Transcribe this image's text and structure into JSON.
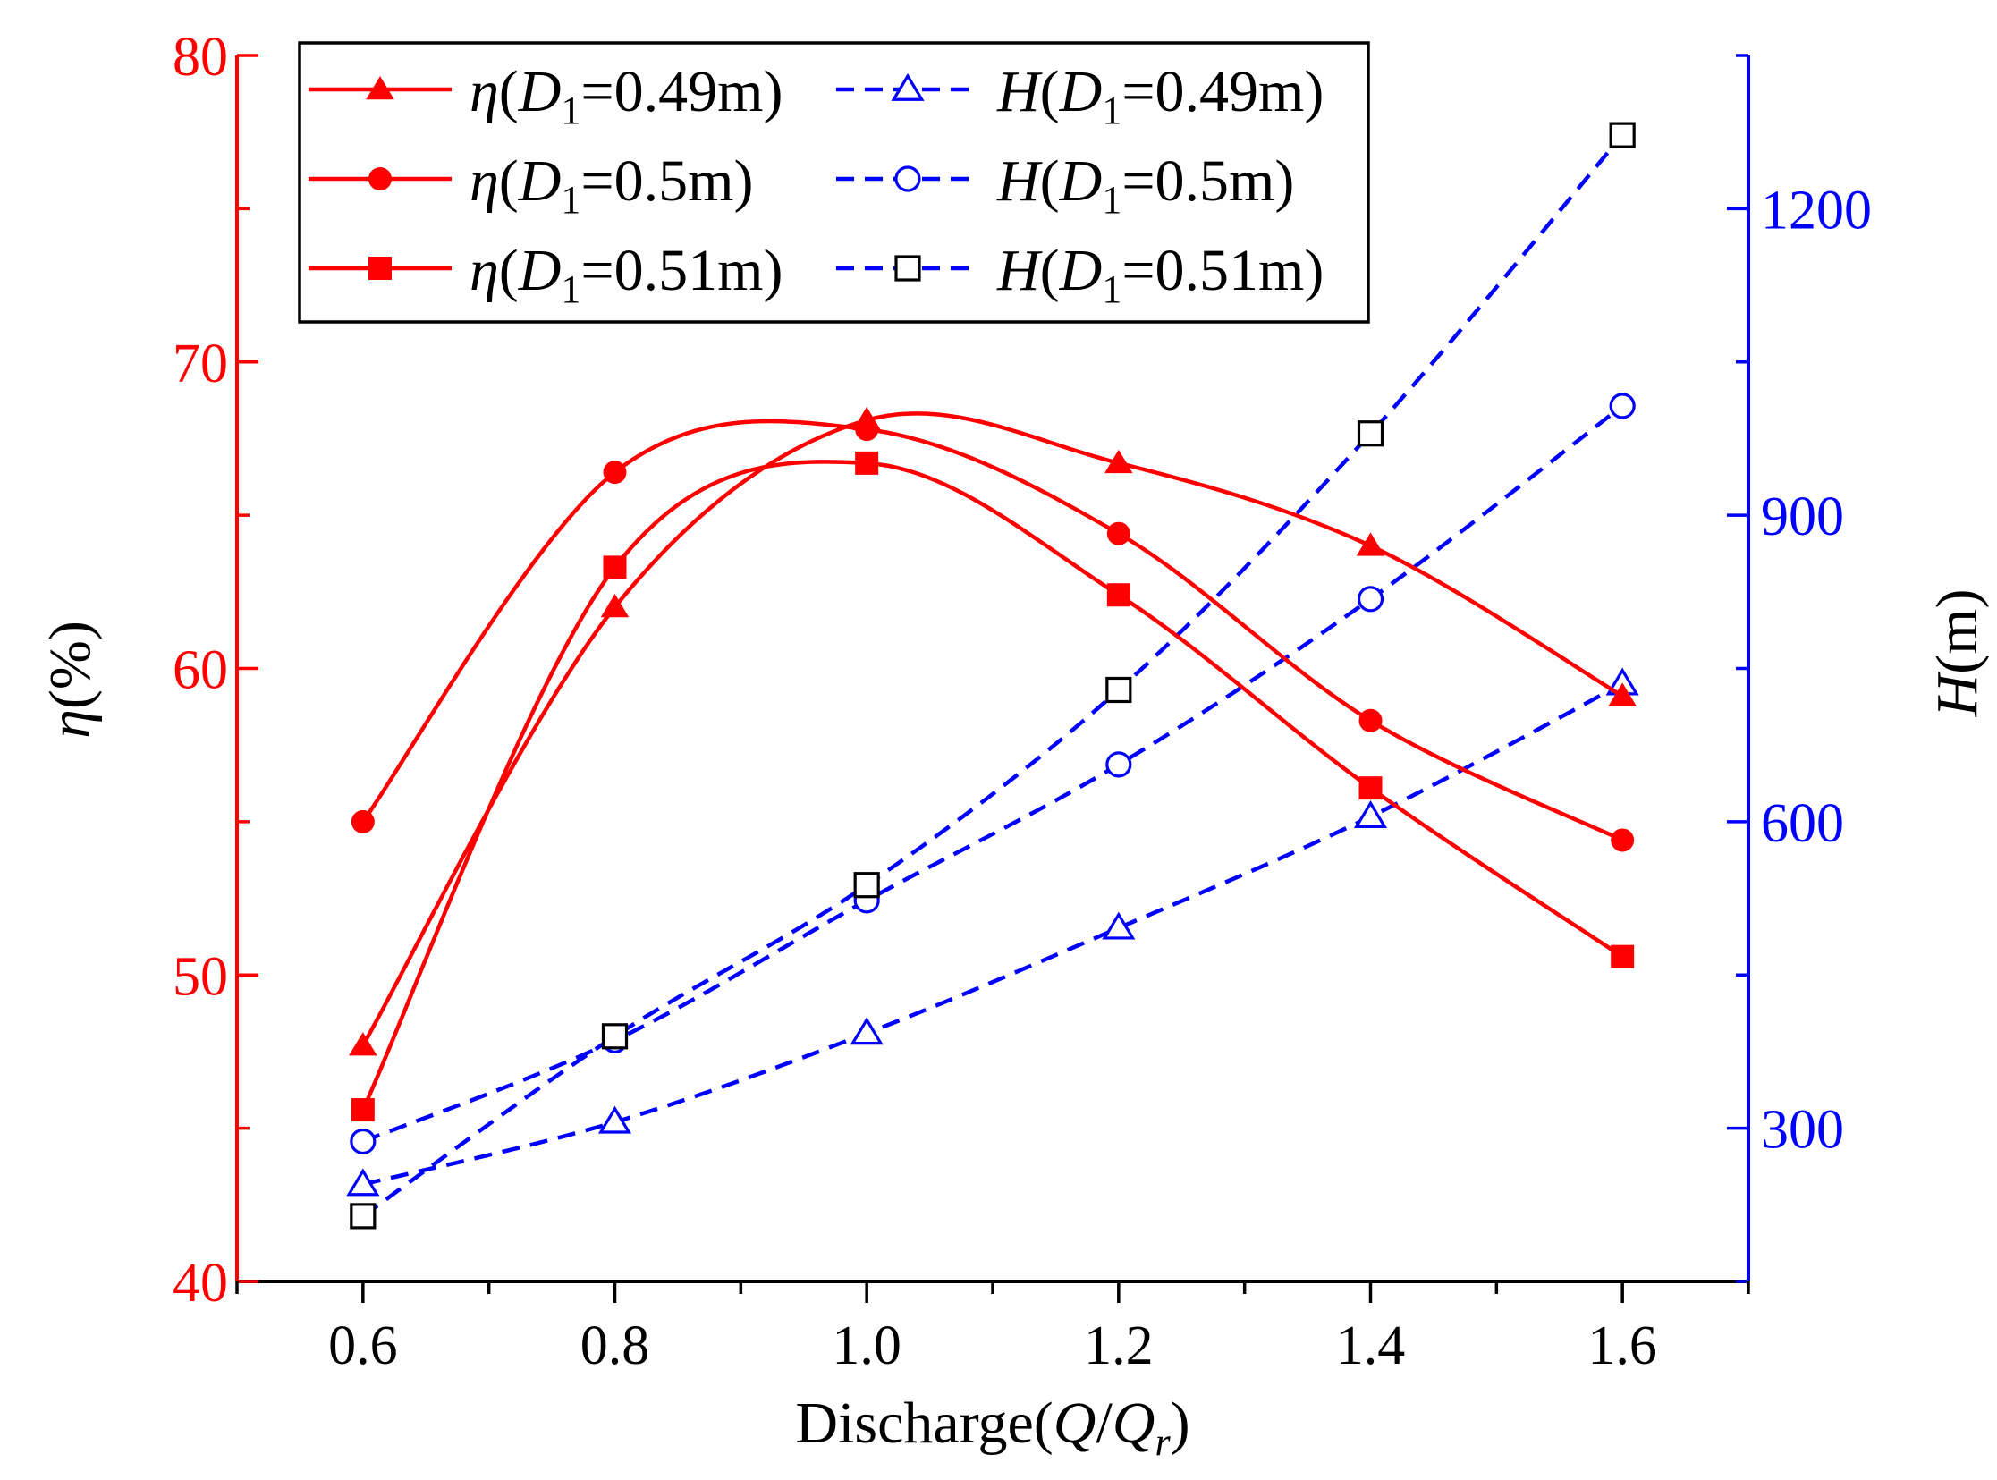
{
  "chart_data": {
    "type": "line",
    "title": "",
    "x": [
      0.6,
      0.8,
      1.0,
      1.2,
      1.4,
      1.6
    ],
    "xlim": [
      0.5,
      1.7
    ],
    "xticks": [
      0.6,
      0.8,
      1.0,
      1.2,
      1.4,
      1.6
    ],
    "xtick_labels": [
      "0.6",
      "0.8",
      "1.0",
      "1.2",
      "1.4",
      "1.6"
    ],
    "xlabel": {
      "prefix": "Discharge(",
      "q": "Q",
      "slash": "/",
      "qr": "Q",
      "sub": "r",
      "suffix": ")"
    },
    "y_left": {
      "label": {
        "sym": "η",
        "unit": "(%)"
      },
      "lim": [
        40,
        80
      ],
      "ticks": [
        40,
        50,
        60,
        70,
        80
      ],
      "tick_labels": [
        "40",
        "50",
        "60",
        "70",
        "80"
      ],
      "color": "#ff0000"
    },
    "y_right": {
      "label": {
        "sym": "H",
        "unit": "(m)"
      },
      "lim": [
        150,
        1350
      ],
      "ticks": [
        300,
        600,
        900,
        1200
      ],
      "tick_labels": [
        "300",
        "600",
        "900",
        "1200"
      ],
      "color": "#0000ff"
    },
    "series": [
      {
        "name": "η(D1=0.49m)",
        "sym": "η",
        "d": "D",
        "dsub": "1",
        "val": "=0.49m)",
        "axis": "left",
        "marker": "triangle",
        "filled": true,
        "color": "#ff0000",
        "dash": "solid",
        "values": [
          47.7,
          62.0,
          68.1,
          66.7,
          64.0,
          59.1
        ]
      },
      {
        "name": "H(D1=0.49m)",
        "sym": "H",
        "d": "D",
        "dsub": "1",
        "val": "=0.49m)",
        "axis": "right",
        "marker": "triangle",
        "filled": false,
        "color": "#0000ff",
        "dash": "dashed",
        "values": [
          245,
          306,
          393,
          496,
          605,
          735
        ]
      },
      {
        "name": "η(D1=0.5m)",
        "sym": "η",
        "d": "D",
        "dsub": "1",
        "val": "=0.5m)",
        "axis": "left",
        "marker": "circle",
        "filled": true,
        "color": "#ff0000",
        "dash": "solid",
        "values": [
          55.0,
          66.4,
          67.8,
          64.4,
          58.3,
          54.4
        ]
      },
      {
        "name": "H(D1=0.5m)",
        "sym": "H",
        "d": "D",
        "dsub": "1",
        "val": "=0.5m)",
        "axis": "right",
        "marker": "circle",
        "filled": false,
        "color": "#0000ff",
        "dash": "dashed",
        "values": [
          287,
          386,
          523,
          656,
          818,
          1007
        ]
      },
      {
        "name": "η(D1=0.51m)",
        "sym": "η",
        "d": "D",
        "dsub": "1",
        "val": "=0.51m)",
        "axis": "left",
        "marker": "square",
        "filled": true,
        "color": "#ff0000",
        "dash": "solid",
        "values": [
          45.6,
          63.3,
          66.7,
          62.4,
          56.1,
          50.6
        ]
      },
      {
        "name": "H(D1=0.51m)",
        "sym": "H",
        "d": "D",
        "dsub": "1",
        "val": "=0.51m)",
        "axis": "right",
        "marker": "square",
        "filled": false,
        "color": "#000000",
        "dash": "dashed",
        "values": [
          214,
          390,
          538,
          729,
          980,
          1272
        ]
      }
    ],
    "legend_position": "top-left",
    "grid": false
  }
}
